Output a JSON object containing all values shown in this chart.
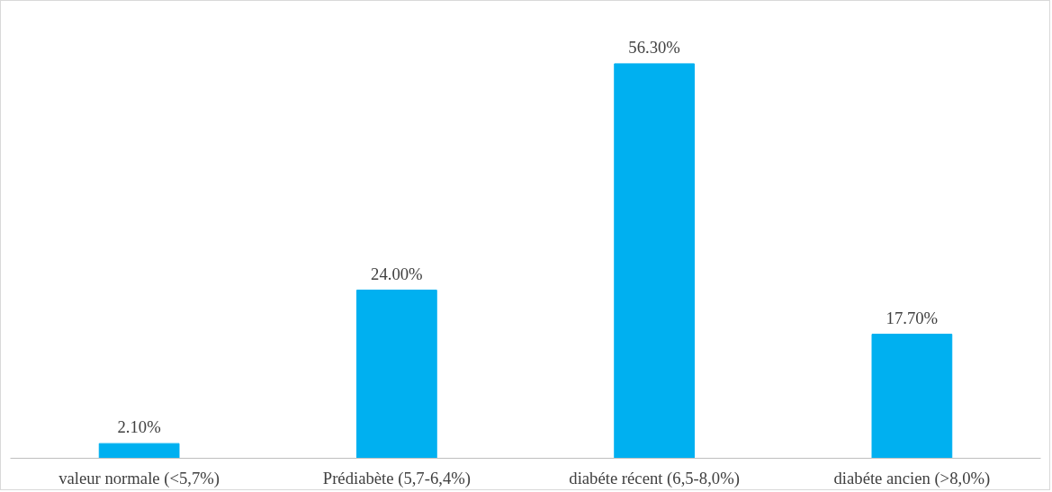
{
  "chart_data": {
    "type": "bar",
    "categories": [
      "valeur normale (<5,7%)",
      "Prédiabète (5,7-6,4%)",
      "diabéte récent (6,5-8,0%)",
      "diabéte ancien (>8,0%)"
    ],
    "values": [
      2.1,
      24.0,
      56.3,
      17.7
    ],
    "color": "#00b0f0",
    "value_labels": [
      "2.10%",
      "24.00%",
      "56.30%",
      "17.70%"
    ],
    "tick_labels": "x",
    "grid": false
  }
}
